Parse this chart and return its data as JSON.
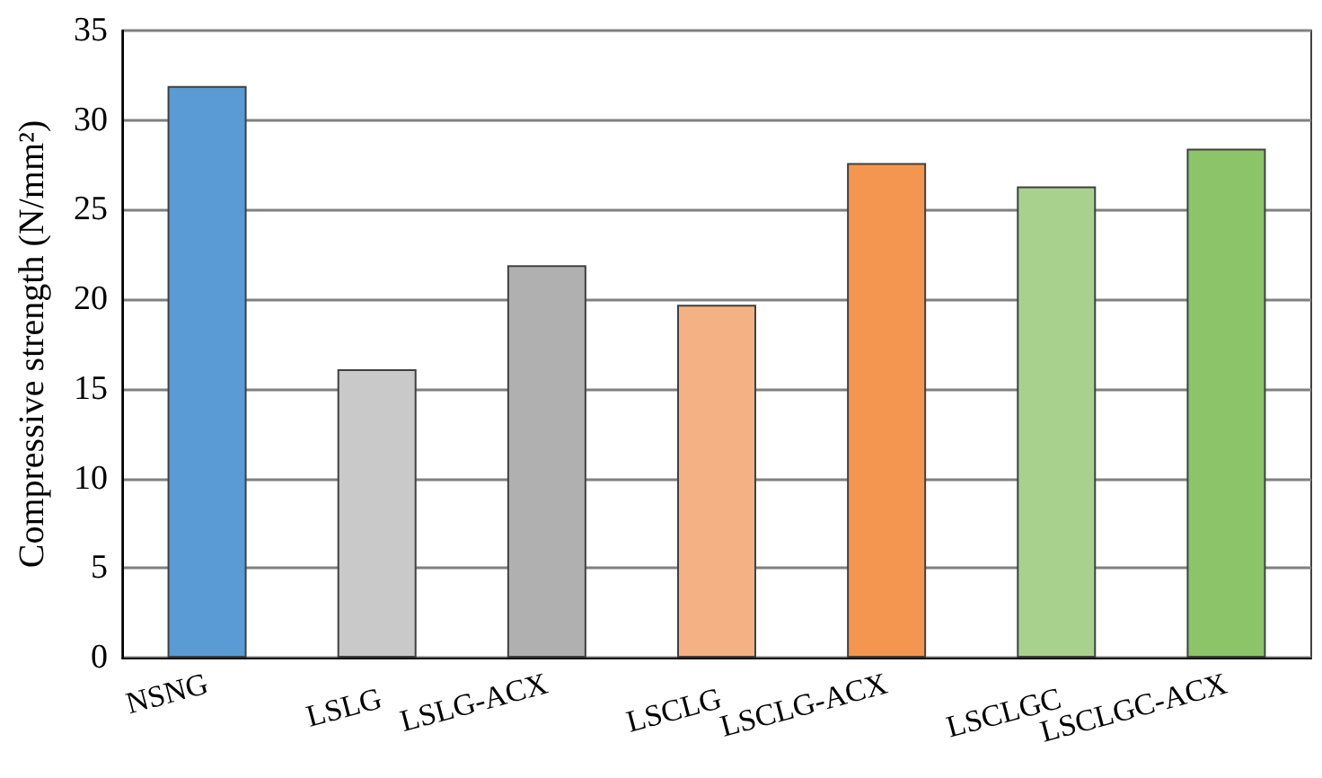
{
  "chart_data": {
    "type": "bar",
    "ylabel": "Compressive strength (N/mm²)",
    "categories": [
      "NSNG",
      "LSLG",
      "LSLG-ACX",
      "LSCLG",
      "LSCLG-ACX",
      "LSCLGC",
      "LSCLGC-ACX"
    ],
    "values": [
      31.9,
      16.1,
      21.9,
      19.7,
      27.6,
      26.3,
      28.4
    ],
    "colors": [
      "#5b9bd5",
      "#c9c9c9",
      "#b0b0b0",
      "#f4b183",
      "#f4964f",
      "#a9d18e",
      "#8cc46a"
    ],
    "ylim": [
      0,
      35
    ],
    "yticks": [
      0,
      5,
      10,
      15,
      20,
      25,
      30,
      35
    ],
    "grid": "y"
  }
}
